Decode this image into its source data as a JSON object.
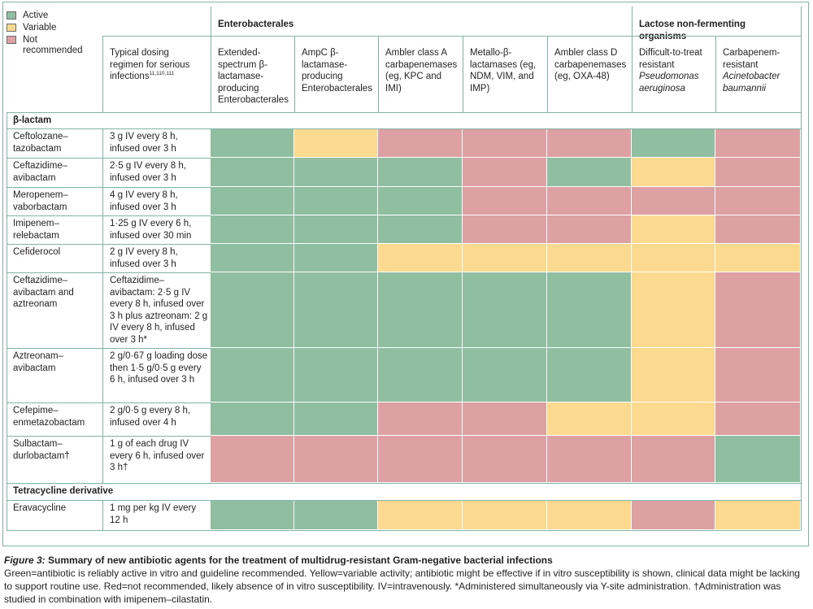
{
  "legend": [
    {
      "label": "Active",
      "color": "#90bea0"
    },
    {
      "label": "Variable",
      "color": "#fbd98e"
    },
    {
      "label": "Not recommended",
      "color": "#dea1a3"
    }
  ],
  "colors": {
    "active": "#90bea0",
    "variable": "#fbd98e",
    "not_recommended": "#dea1a3",
    "line": "#7fb4a7",
    "text": "#231f20"
  },
  "header": {
    "dosing": "Typical dosing regimen for serious infections",
    "dosing_refs": "11,110,111",
    "group_enterobacterales": "Enterobacterales",
    "group_nonfermenters": "Lactose non-fermenting organisms",
    "columns": [
      {
        "text": "Extended-spectrum β-lactamase-producing Enterobacterales",
        "italic": ""
      },
      {
        "text": "AmpC β-lactamase-producing Enterobacterales",
        "italic": ""
      },
      {
        "text": "Ambler class A carbapenemases (eg, KPC and IMI)",
        "italic": ""
      },
      {
        "text": "Metallo-β-lactamases (eg, NDM, VIM, and IMP)",
        "italic": ""
      },
      {
        "text": "Ambler class D carbapenemases (eg, OXA-48)",
        "italic": ""
      },
      {
        "text": "Difficult-to-treat resistant",
        "italic": "Pseudomonas aeruginosa"
      },
      {
        "text": "Carbapenem-resistant",
        "italic": "Acinetobacter baumannii"
      }
    ]
  },
  "sections": [
    {
      "title": "β-lactam",
      "rows": [
        {
          "drug": "Ceftolozane–tazobactam",
          "dosing": "3 g IV every 8 h, infused over 3 h",
          "status": [
            "A",
            "V",
            "N",
            "N",
            "N",
            "A",
            "N"
          ]
        },
        {
          "drug": "Ceftazidime–avibactam",
          "dosing": "2·5 g IV every 8 h, infused over 3 h",
          "status": [
            "A",
            "A",
            "A",
            "N",
            "A",
            "V",
            "N"
          ]
        },
        {
          "drug": "Meropenem–vaborbactam",
          "dosing": "4 g IV every 8 h, infused over 3 h",
          "status": [
            "A",
            "A",
            "A",
            "N",
            "N",
            "N",
            "N"
          ]
        },
        {
          "drug": "Imipenem–relebactam",
          "dosing": "1·25 g IV every 6 h, infused over 30 min",
          "status": [
            "A",
            "A",
            "A",
            "N",
            "N",
            "V",
            "N"
          ]
        },
        {
          "drug": "Cefiderocol",
          "dosing": "2 g IV every 8 h, infused over 3 h",
          "status": [
            "A",
            "A",
            "V",
            "V",
            "V",
            "V",
            "V"
          ]
        },
        {
          "drug": "Ceftazidime–avibactam and aztreonam",
          "dosing": "Ceftazidime–avibactam: 2·5 g IV every 8 h, infused over 3 h plus aztreonam: 2 g IV every 8 h, infused over 3 h*",
          "status": [
            "A",
            "A",
            "A",
            "A",
            "A",
            "V",
            "N"
          ]
        },
        {
          "drug": "Aztreonam–avibactam",
          "dosing": "2 g/0·67 g loading dose then 1·5 g/0·5 g every 6 h, infused over 3 h",
          "status": [
            "A",
            "A",
            "A",
            "A",
            "A",
            "V",
            "N"
          ]
        },
        {
          "drug": "Cefepime–enmetazobactam",
          "dosing": "2 g/0·5 g every 8 h, infused over 4 h",
          "status": [
            "A",
            "A",
            "N",
            "N",
            "V",
            "V",
            "N"
          ]
        },
        {
          "drug": "Sulbactam–durlobactam†",
          "dosing": "1 g of each drug IV every 6 h, infused over 3 h†",
          "status": [
            "N",
            "N",
            "N",
            "N",
            "N",
            "N",
            "A"
          ]
        }
      ]
    },
    {
      "title": "Tetracycline derivative",
      "rows": [
        {
          "drug": "Eravacycline",
          "dosing": "1 mg per kg IV every 12 h",
          "status": [
            "A",
            "A",
            "V",
            "V",
            "V",
            "N",
            "V"
          ]
        }
      ]
    }
  ],
  "caption": {
    "figure_label": "Figure 3:",
    "title": "Summary of new antibiotic agents for the treatment of multidrug-resistant Gram-negative bacterial infections",
    "body": "Green=antibiotic is reliably active in vitro and guideline recommended. Yellow=variable activity; antibiotic might be effective if in vitro susceptibility is shown, clinical data might be lacking to support routine use. Red=not recommended, likely absence of in vitro susceptibility. IV=intravenously. *Administered simultaneously via Y-site administration. †Administration was studied in combination with imipenem–cilastatin."
  }
}
